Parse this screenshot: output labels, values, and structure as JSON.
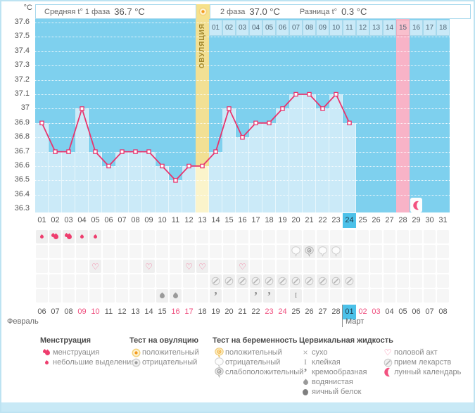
{
  "header": {
    "unit": "°C",
    "phase1_label": "Средняя t° 1 фаза",
    "phase1_value": "36.7 °C",
    "phase2_label": "2 фаза",
    "phase2_value": "37.0 °C",
    "diff_label": "Разница t°",
    "diff_value": "0.3 °C",
    "ovulation_test_icon": "ovu-positive"
  },
  "chart_data": {
    "type": "line",
    "ylabel_unit": "°C",
    "ylim": [
      36.3,
      37.6
    ],
    "ytick_step": 0.1,
    "x_day_labels": [
      "01",
      "02",
      "03",
      "04",
      "05",
      "06",
      "07",
      "08",
      "09",
      "10",
      "11",
      "12",
      "13",
      "14",
      "15",
      "16",
      "17",
      "18",
      "19",
      "20",
      "21",
      "22",
      "23",
      "24",
      "25",
      "26",
      "27",
      "28",
      "29",
      "30",
      "31"
    ],
    "series": [
      {
        "name": "базальная температура",
        "values": [
          36.9,
          36.7,
          36.7,
          37.0,
          36.7,
          36.6,
          36.7,
          36.7,
          36.7,
          36.6,
          36.5,
          36.6,
          36.6,
          36.7,
          37.0,
          36.8,
          36.9,
          36.9,
          37.0,
          37.1,
          37.1,
          37.0,
          37.1,
          36.9,
          null,
          null,
          null,
          null,
          null,
          null,
          null
        ]
      }
    ],
    "ovulation_day": 13,
    "ovulation_label": "ОВУЛЯЦИЯ",
    "current_cycle_day": 24,
    "expected_period_day": 28,
    "lunar_marker_day": 29,
    "dpo_row": {
      "start_day": 14,
      "labels": [
        "01",
        "02",
        "03",
        "04",
        "05",
        "06",
        "07",
        "08",
        "09",
        "10",
        "11",
        "12",
        "13",
        "14",
        "15",
        "16",
        "17",
        "18"
      ],
      "highlighted_label": "15"
    },
    "grid": "dotted-horizontal",
    "legend_position": "bottom"
  },
  "icon_rows": [
    {
      "name": "menstruation",
      "cells": {
        "1": "drop-light",
        "2": "drop-heavy",
        "3": "drop-heavy",
        "4": "drop-light",
        "5": "drop-light"
      }
    },
    {
      "name": "pregnancy-test",
      "cells": {
        "20": "preg-negative",
        "21": "preg-weak",
        "22": "preg-negative",
        "23": "preg-negative"
      }
    },
    {
      "name": "intercourse",
      "cells": {
        "5": "heart",
        "9": "heart",
        "12": "heart",
        "13": "heart",
        "16": "heart"
      }
    },
    {
      "name": "medication",
      "cells": {
        "14": "pill",
        "15": "pill",
        "16": "pill",
        "17": "pill",
        "18": "pill",
        "19": "pill",
        "20": "pill",
        "21": "pill",
        "22": "pill",
        "23": "pill",
        "24": "pill"
      }
    },
    {
      "name": "cervical-fluid",
      "cells": {
        "10": "watery",
        "11": "watery",
        "14": "creamy",
        "17": "creamy",
        "18": "creamy",
        "20": "sticky"
      }
    }
  ],
  "date_row": {
    "february_label": "Февраль",
    "march_label": "Март",
    "days": [
      {
        "label": "06"
      },
      {
        "label": "07"
      },
      {
        "label": "08"
      },
      {
        "label": "09",
        "style": "red"
      },
      {
        "label": "10",
        "style": "red"
      },
      {
        "label": "11"
      },
      {
        "label": "12"
      },
      {
        "label": "13"
      },
      {
        "label": "14"
      },
      {
        "label": "15"
      },
      {
        "label": "16",
        "style": "red"
      },
      {
        "label": "17",
        "style": "red"
      },
      {
        "label": "18"
      },
      {
        "label": "19"
      },
      {
        "label": "20"
      },
      {
        "label": "21"
      },
      {
        "label": "22"
      },
      {
        "label": "23",
        "style": "red"
      },
      {
        "label": "24",
        "style": "red"
      },
      {
        "label": "25"
      },
      {
        "label": "26"
      },
      {
        "label": "27"
      },
      {
        "label": "28"
      },
      {
        "label": "01",
        "style": "current",
        "month_start": true
      },
      {
        "label": "02",
        "style": "red"
      },
      {
        "label": "03",
        "style": "red"
      },
      {
        "label": "04"
      },
      {
        "label": "05"
      },
      {
        "label": "06"
      },
      {
        "label": "07"
      },
      {
        "label": "08"
      }
    ]
  },
  "legend": {
    "columns": [
      {
        "title": "Менструация",
        "items": [
          {
            "icon": "drop-heavy",
            "label": "менструация"
          },
          {
            "icon": "drop-light",
            "label": "небольшие выделения"
          }
        ]
      },
      {
        "title": "Тест на овуляцию",
        "items": [
          {
            "icon": "ovu-positive",
            "label": "положительный"
          },
          {
            "icon": "ovu-negative",
            "label": "отрицательный"
          }
        ]
      },
      {
        "title": "Тест на беременность",
        "items": [
          {
            "icon": "preg-positive",
            "label": "положительный"
          },
          {
            "icon": "preg-negative",
            "label": "отрицательный"
          },
          {
            "icon": "preg-weak",
            "label": "слабоположительный"
          }
        ]
      },
      {
        "title": "Цервикальная жидкость",
        "items": [
          {
            "icon": "dry",
            "label": "сухо"
          },
          {
            "icon": "sticky",
            "label": "клейкая"
          },
          {
            "icon": "creamy",
            "label": "кремообразная"
          },
          {
            "icon": "watery",
            "label": "водянистая"
          },
          {
            "icon": "eggwhite",
            "label": "яичный белок"
          }
        ]
      },
      {
        "title": "",
        "items": [
          {
            "icon": "heart",
            "label": "половой акт"
          },
          {
            "icon": "pill",
            "label": "прием лекарств"
          },
          {
            "icon": "moon",
            "label": "лунный календарь"
          }
        ]
      }
    ]
  },
  "colors": {
    "line": "#e8356e",
    "plot_bg": "#7ed0ee",
    "column_fill": "#cbeaf8",
    "ovulation_bg": "#f2e094",
    "ovulation_fill": "#fbf4cb",
    "period_pink": "#f8b3c7",
    "today_blue": "#4cc1e9",
    "weekend_red": "#ef4d7d"
  }
}
